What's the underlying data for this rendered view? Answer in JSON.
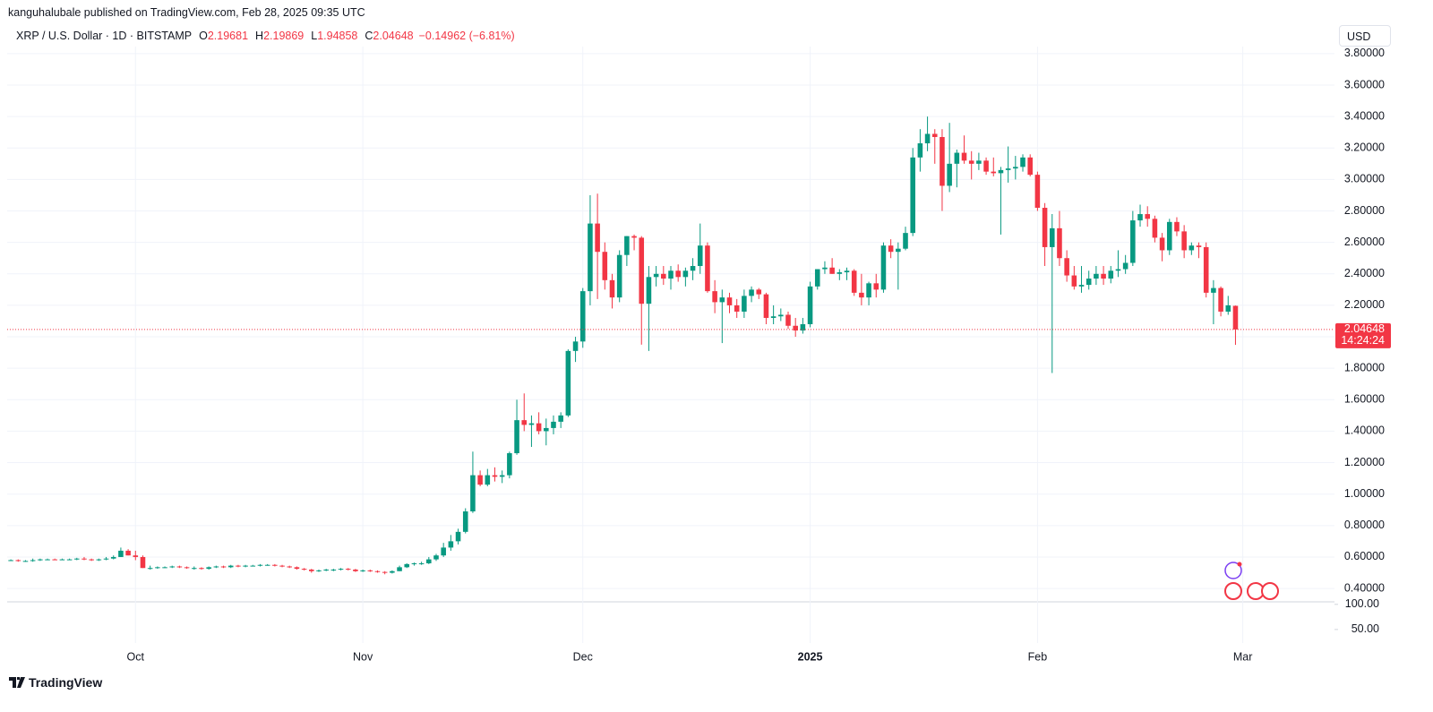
{
  "chart_data": {
    "type": "candlestick",
    "published": "kanguhalubale published on TradingView.com, Feb 28, 2025 09:35 UTC",
    "title": "XRP / U.S. Dollar · 1D · BITSTAMP",
    "ohlc_labels": [
      "O",
      "H",
      "L",
      "C"
    ],
    "change": "−0.14962 (−6.81%)",
    "currency": "USD",
    "countdown": "14:24:24",
    "brand": "TradingView",
    "up_color": "#089981",
    "down_color": "#f23645",
    "grid": true,
    "xlim": [
      -0.5,
      180.5
    ],
    "xticks": [
      {
        "value": 17,
        "label": "Oct"
      },
      {
        "value": 48,
        "label": "Nov"
      },
      {
        "value": 78,
        "label": "Dec"
      },
      {
        "value": 109,
        "label": "2025",
        "bold": true
      },
      {
        "value": 140,
        "label": "Feb"
      },
      {
        "value": 168,
        "label": "Mar"
      }
    ],
    "ylim": [
      0.315,
      3.845
    ],
    "yticks": [
      {
        "value": 0.4,
        "label": "0.40000"
      },
      {
        "value": 0.6,
        "label": "0.60000"
      },
      {
        "value": 0.8,
        "label": "0.80000"
      },
      {
        "value": 1.0,
        "label": "1.00000"
      },
      {
        "value": 1.2,
        "label": "1.20000"
      },
      {
        "value": 1.4,
        "label": "1.40000"
      },
      {
        "value": 1.6,
        "label": "1.60000"
      },
      {
        "value": 1.8,
        "label": "1.80000"
      },
      {
        "value": 2.0,
        "label": "2.00000"
      },
      {
        "value": 2.2,
        "label": "2.20000"
      },
      {
        "value": 2.4,
        "label": "2.40000"
      },
      {
        "value": 2.6,
        "label": "2.60000"
      },
      {
        "value": 2.8,
        "label": "2.80000"
      },
      {
        "value": 3.0,
        "label": "3.00000"
      },
      {
        "value": 3.2,
        "label": "3.20000"
      },
      {
        "value": 3.4,
        "label": "3.40000"
      },
      {
        "value": 3.6,
        "label": "3.60000"
      },
      {
        "value": 3.8,
        "label": "3.80000"
      }
    ],
    "indicator_pane": {
      "ylim": [
        23,
        105
      ],
      "yticks": [
        {
          "value": 100,
          "label": "100.00"
        },
        {
          "value": 50,
          "label": "50.00"
        }
      ]
    },
    "open": [
      0.58,
      0.58,
      0.575,
      0.575,
      0.58,
      0.585,
      0.585,
      0.582,
      0.585,
      0.585,
      0.59,
      0.585,
      0.58,
      0.585,
      0.59,
      0.6,
      0.64,
      0.61,
      0.6,
      0.53,
      0.53,
      0.535,
      0.535,
      0.54,
      0.535,
      0.53,
      0.53,
      0.525,
      0.535,
      0.54,
      0.535,
      0.545,
      0.54,
      0.545,
      0.545,
      0.55,
      0.55,
      0.545,
      0.54,
      0.535,
      0.525,
      0.52,
      0.51,
      0.515,
      0.52,
      0.52,
      0.525,
      0.52,
      0.51,
      0.515,
      0.51,
      0.505,
      0.5,
      0.51,
      0.535,
      0.555,
      0.56,
      0.56,
      0.585,
      0.61,
      0.66,
      0.7,
      0.76,
      0.89,
      1.12,
      1.06,
      1.12,
      1.11,
      1.12,
      1.26,
      1.47,
      1.44,
      1.45,
      1.4,
      1.42,
      1.46,
      1.5,
      1.91,
      1.97,
      2.29,
      2.72,
      2.54,
      2.36,
      2.25,
      2.52,
      2.64,
      2.63,
      2.21,
      2.38,
      2.4,
      2.37,
      2.42,
      2.38,
      2.42,
      2.45,
      2.58,
      2.29,
      2.22,
      2.25,
      2.2,
      2.16,
      2.26,
      2.3,
      2.27,
      2.12,
      2.13,
      2.14,
      2.07,
      2.04,
      2.08,
      2.32,
      2.43,
      2.44,
      2.4,
      2.41,
      2.42,
      2.28,
      2.25,
      2.34,
      2.3,
      2.58,
      2.54,
      2.56,
      2.66,
      3.14,
      3.23,
      3.29,
      3.27,
      2.96,
      3.1,
      3.17,
      3.12,
      3.1,
      3.12,
      3.05,
      3.04,
      3.06,
      3.07,
      3.08,
      3.14,
      3.03,
      2.82,
      2.57,
      2.69,
      2.5,
      2.39,
      2.32,
      2.33,
      2.37,
      2.4,
      2.37,
      2.42,
      2.43,
      2.47,
      2.74,
      2.78,
      2.75,
      2.63,
      2.55,
      2.73,
      2.67,
      2.55,
      2.58,
      2.57,
      2.28,
      2.31,
      2.16,
      2.19681
    ],
    "high": [
      0.585,
      0.585,
      0.58,
      0.59,
      0.59,
      0.59,
      0.59,
      0.59,
      0.59,
      0.595,
      0.6,
      0.59,
      0.59,
      0.6,
      0.61,
      0.66,
      0.65,
      0.64,
      0.61,
      0.545,
      0.54,
      0.54,
      0.545,
      0.545,
      0.54,
      0.54,
      0.535,
      0.54,
      0.545,
      0.545,
      0.55,
      0.55,
      0.55,
      0.55,
      0.555,
      0.555,
      0.555,
      0.55,
      0.545,
      0.54,
      0.53,
      0.525,
      0.52,
      0.525,
      0.525,
      0.53,
      0.53,
      0.525,
      0.52,
      0.52,
      0.515,
      0.51,
      0.515,
      0.545,
      0.56,
      0.565,
      0.57,
      0.6,
      0.62,
      0.69,
      0.74,
      0.78,
      0.91,
      1.27,
      1.15,
      1.16,
      1.17,
      1.15,
      1.27,
      1.6,
      1.64,
      1.5,
      1.52,
      1.48,
      1.5,
      1.52,
      1.92,
      2.0,
      2.31,
      2.9,
      2.91,
      2.6,
      2.4,
      2.55,
      2.64,
      2.65,
      2.64,
      2.45,
      2.45,
      2.45,
      2.45,
      2.46,
      2.44,
      2.5,
      2.72,
      2.6,
      2.36,
      2.3,
      2.28,
      2.24,
      2.3,
      2.32,
      2.31,
      2.28,
      2.2,
      2.18,
      2.16,
      2.12,
      2.12,
      2.35,
      2.43,
      2.48,
      2.5,
      2.43,
      2.44,
      2.43,
      2.4,
      2.35,
      2.4,
      2.6,
      2.62,
      2.6,
      2.7,
      3.2,
      3.32,
      3.4,
      3.32,
      3.32,
      3.36,
      3.19,
      3.28,
      3.18,
      3.17,
      3.14,
      3.14,
      3.08,
      3.21,
      3.15,
      3.16,
      3.16,
      3.05,
      2.85,
      2.78,
      2.8,
      2.55,
      2.45,
      2.45,
      2.42,
      2.45,
      2.45,
      2.45,
      2.55,
      2.52,
      2.8,
      2.84,
      2.83,
      2.77,
      2.66,
      2.75,
      2.76,
      2.71,
      2.6,
      2.6,
      2.6,
      2.36,
      2.32,
      2.26,
      2.19869
    ],
    "low": [
      0.575,
      0.57,
      0.57,
      0.57,
      0.575,
      0.58,
      0.58,
      0.58,
      0.58,
      0.58,
      0.58,
      0.575,
      0.575,
      0.58,
      0.585,
      0.6,
      0.61,
      0.58,
      0.53,
      0.52,
      0.525,
      0.53,
      0.53,
      0.53,
      0.525,
      0.52,
      0.52,
      0.52,
      0.53,
      0.53,
      0.53,
      0.535,
      0.535,
      0.54,
      0.54,
      0.545,
      0.54,
      0.535,
      0.53,
      0.52,
      0.515,
      0.5,
      0.505,
      0.51,
      0.51,
      0.515,
      0.515,
      0.505,
      0.505,
      0.505,
      0.5,
      0.49,
      0.495,
      0.51,
      0.53,
      0.545,
      0.55,
      0.555,
      0.575,
      0.6,
      0.64,
      0.68,
      0.75,
      0.88,
      1.05,
      1.05,
      1.08,
      1.07,
      1.1,
      1.25,
      1.4,
      1.3,
      1.38,
      1.31,
      1.38,
      1.42,
      1.49,
      1.84,
      1.93,
      2.2,
      2.24,
      2.3,
      2.18,
      2.22,
      2.45,
      2.55,
      1.95,
      1.91,
      2.32,
      2.33,
      2.3,
      2.35,
      2.32,
      2.36,
      2.4,
      2.28,
      2.15,
      1.96,
      2.15,
      2.12,
      2.12,
      2.22,
      2.24,
      2.08,
      2.08,
      2.1,
      2.05,
      2.0,
      2.02,
      2.06,
      2.3,
      2.4,
      2.4,
      2.36,
      2.36,
      2.26,
      2.2,
      2.2,
      2.25,
      2.28,
      2.5,
      2.3,
      2.55,
      2.64,
      3.05,
      3.18,
      3.1,
      2.8,
      2.92,
      2.95,
      3.1,
      3.0,
      3.06,
      3.03,
      3.02,
      2.65,
      2.98,
      3.0,
      3.05,
      3.02,
      2.8,
      2.45,
      1.77,
      2.45,
      2.35,
      2.3,
      2.28,
      2.3,
      2.33,
      2.33,
      2.34,
      2.38,
      2.4,
      2.45,
      2.7,
      2.7,
      2.6,
      2.48,
      2.52,
      2.64,
      2.5,
      2.52,
      2.5,
      2.25,
      2.08,
      2.13,
      2.14,
      1.94858
    ],
    "close": [
      0.58,
      0.575,
      0.575,
      0.58,
      0.585,
      0.585,
      0.582,
      0.585,
      0.585,
      0.59,
      0.585,
      0.58,
      0.585,
      0.59,
      0.6,
      0.64,
      0.61,
      0.6,
      0.53,
      0.53,
      0.535,
      0.535,
      0.54,
      0.535,
      0.53,
      0.53,
      0.525,
      0.535,
      0.54,
      0.535,
      0.545,
      0.54,
      0.545,
      0.545,
      0.55,
      0.55,
      0.545,
      0.54,
      0.535,
      0.525,
      0.52,
      0.51,
      0.515,
      0.52,
      0.52,
      0.525,
      0.52,
      0.51,
      0.515,
      0.51,
      0.505,
      0.5,
      0.51,
      0.535,
      0.555,
      0.56,
      0.56,
      0.585,
      0.61,
      0.66,
      0.7,
      0.76,
      0.89,
      1.12,
      1.06,
      1.12,
      1.11,
      1.12,
      1.26,
      1.47,
      1.44,
      1.45,
      1.4,
      1.42,
      1.46,
      1.5,
      1.91,
      1.97,
      2.29,
      2.72,
      2.54,
      2.36,
      2.25,
      2.52,
      2.64,
      2.63,
      2.21,
      2.38,
      2.4,
      2.37,
      2.42,
      2.38,
      2.42,
      2.45,
      2.58,
      2.29,
      2.22,
      2.25,
      2.2,
      2.16,
      2.26,
      2.3,
      2.27,
      2.12,
      2.13,
      2.14,
      2.07,
      2.04,
      2.08,
      2.32,
      2.43,
      2.44,
      2.4,
      2.41,
      2.42,
      2.28,
      2.25,
      2.34,
      2.3,
      2.58,
      2.54,
      2.56,
      2.66,
      3.14,
      3.23,
      3.29,
      3.27,
      2.96,
      3.1,
      3.17,
      3.12,
      3.1,
      3.12,
      3.05,
      3.04,
      3.06,
      3.07,
      3.08,
      3.14,
      3.03,
      2.82,
      2.57,
      2.69,
      2.5,
      2.39,
      2.32,
      2.33,
      2.37,
      2.4,
      2.37,
      2.42,
      2.43,
      2.47,
      2.74,
      2.78,
      2.75,
      2.63,
      2.55,
      2.73,
      2.67,
      2.55,
      2.58,
      2.57,
      2.28,
      2.31,
      2.16,
      2.2,
      2.04648
    ]
  }
}
